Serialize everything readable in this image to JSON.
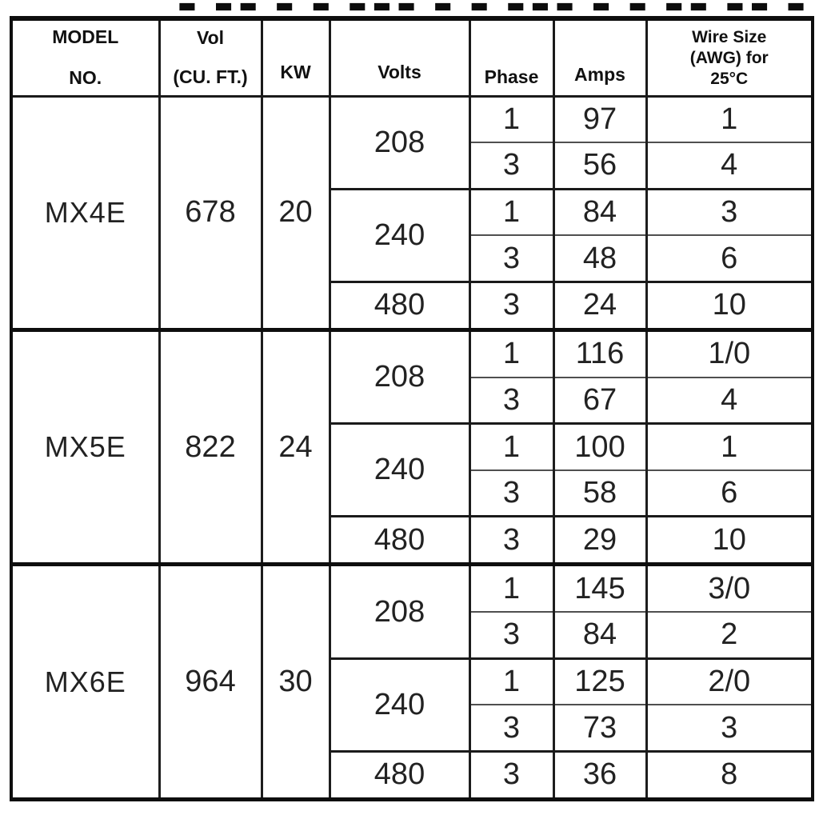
{
  "colors": {
    "background": "#ffffff",
    "border": "#0e0e0e",
    "grid_line": "#1d1d1d",
    "thin_line": "#4f4f4f",
    "text": "#222222"
  },
  "partial_title": {
    "marks": "▬ ▬▬ ▬ ▬ ▬▬▬ ▬ ▬ ▬▬▬ ▬ ▬ ▬▬ ▬▬ ▬ ▬"
  },
  "table": {
    "headers": [
      {
        "id": "model",
        "lines": [
          "MODEL",
          "NO."
        ]
      },
      {
        "id": "vol",
        "lines": [
          "Vol",
          "(CU. FT.)"
        ]
      },
      {
        "id": "kw",
        "lines": [
          "KW"
        ]
      },
      {
        "id": "volts",
        "lines": [
          "Volts"
        ]
      },
      {
        "id": "phase",
        "lines": [
          "Phase"
        ]
      },
      {
        "id": "amps",
        "lines": [
          "Amps"
        ]
      },
      {
        "id": "wire",
        "lines": [
          "Wire Size",
          "(AWG) for",
          "25°C"
        ]
      }
    ],
    "models": [
      {
        "model": "MX4E",
        "vol_cu_ft": "678",
        "kw": "20",
        "volt_groups": [
          {
            "volts": "208",
            "rows": [
              {
                "phase": "1",
                "amps": "97",
                "wire_size": "1"
              },
              {
                "phase": "3",
                "amps": "56",
                "wire_size": "4"
              }
            ]
          },
          {
            "volts": "240",
            "rows": [
              {
                "phase": "1",
                "amps": "84",
                "wire_size": "3"
              },
              {
                "phase": "3",
                "amps": "48",
                "wire_size": "6"
              }
            ]
          },
          {
            "volts": "480",
            "rows": [
              {
                "phase": "3",
                "amps": "24",
                "wire_size": "10"
              }
            ]
          }
        ]
      },
      {
        "model": "MX5E",
        "vol_cu_ft": "822",
        "kw": "24",
        "volt_groups": [
          {
            "volts": "208",
            "rows": [
              {
                "phase": "1",
                "amps": "116",
                "wire_size": "1/0"
              },
              {
                "phase": "3",
                "amps": "67",
                "wire_size": "4"
              }
            ]
          },
          {
            "volts": "240",
            "rows": [
              {
                "phase": "1",
                "amps": "100",
                "wire_size": "1"
              },
              {
                "phase": "3",
                "amps": "58",
                "wire_size": "6"
              }
            ]
          },
          {
            "volts": "480",
            "rows": [
              {
                "phase": "3",
                "amps": "29",
                "wire_size": "10"
              }
            ]
          }
        ]
      },
      {
        "model": "MX6E",
        "vol_cu_ft": "964",
        "kw": "30",
        "volt_groups": [
          {
            "volts": "208",
            "rows": [
              {
                "phase": "1",
                "amps": "145",
                "wire_size": "3/0"
              },
              {
                "phase": "3",
                "amps": "84",
                "wire_size": "2"
              }
            ]
          },
          {
            "volts": "240",
            "rows": [
              {
                "phase": "1",
                "amps": "125",
                "wire_size": "2/0"
              },
              {
                "phase": "3",
                "amps": "73",
                "wire_size": "3"
              }
            ]
          },
          {
            "volts": "480",
            "rows": [
              {
                "phase": "3",
                "amps": "36",
                "wire_size": "8"
              }
            ]
          }
        ]
      }
    ]
  }
}
